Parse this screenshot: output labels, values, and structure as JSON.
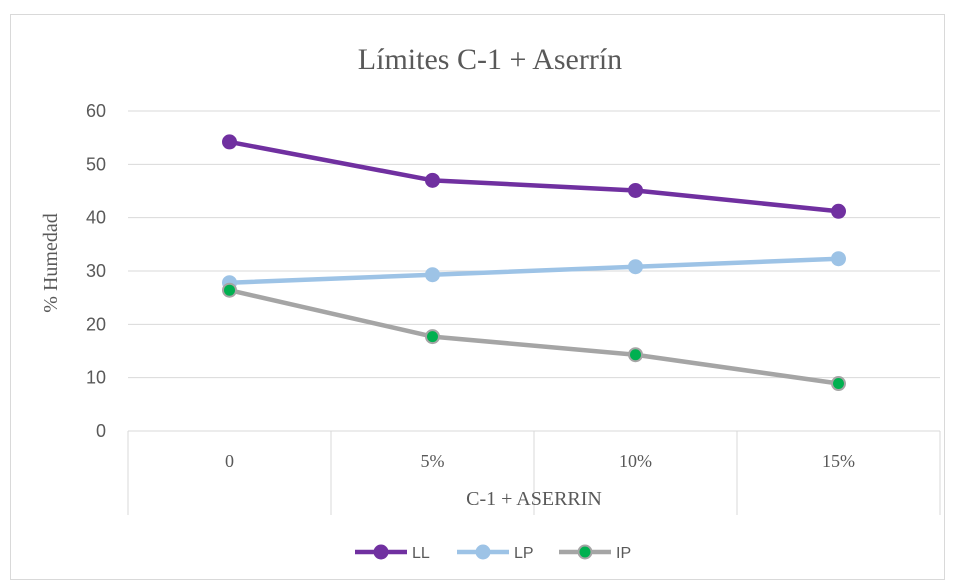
{
  "chart_data": {
    "type": "line",
    "title": "Límites C-1 + Aserrín",
    "xlabel": "C-1 + ASERRIN",
    "ylabel": "% Humedad",
    "categories": [
      "0",
      "5%",
      "10%",
      "15%"
    ],
    "ylim": [
      0,
      60
    ],
    "yticks": [
      0,
      10,
      20,
      30,
      40,
      50,
      60
    ],
    "grid": true,
    "legend_position": "bottom",
    "series": [
      {
        "name": "LL",
        "values": [
          54.2,
          47.0,
          45.1,
          41.2
        ],
        "line_color": "#7030a0",
        "marker_color": "#7030a0"
      },
      {
        "name": "LP",
        "values": [
          27.8,
          29.3,
          30.8,
          32.3
        ],
        "line_color": "#9dc3e6",
        "marker_color": "#9dc3e6"
      },
      {
        "name": "IP",
        "values": [
          26.4,
          17.7,
          14.3,
          8.9
        ],
        "line_color": "#a5a5a5",
        "marker_color": "#00b050"
      }
    ]
  }
}
